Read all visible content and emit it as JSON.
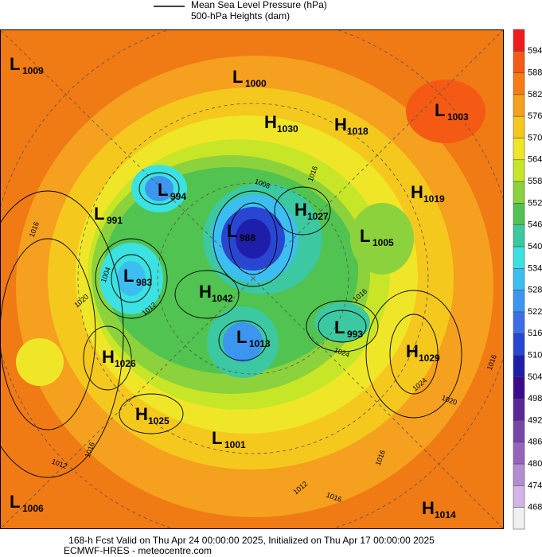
{
  "header": {
    "mslp_label": "Mean Sea Level Pressure (hPa)",
    "height_label": "500-hPa Heights (dam)"
  },
  "colorbar": {
    "ticks": [
      594,
      588,
      582,
      576,
      570,
      564,
      558,
      552,
      546,
      540,
      534,
      528,
      522,
      516,
      510,
      504,
      498,
      492,
      486,
      480,
      474,
      468
    ],
    "colors": [
      "#ee1c1c",
      "#f55a14",
      "#f57d14",
      "#f5a01e",
      "#f5c81e",
      "#f0e628",
      "#c8e628",
      "#8cd23c",
      "#50c350",
      "#3cc8a0",
      "#3ce1e1",
      "#3cbef0",
      "#3c96f0",
      "#3c6ee6",
      "#2846d2",
      "#1e1eaa",
      "#3c0a8c",
      "#5a2896",
      "#7846a8",
      "#9664bc",
      "#b48cd0",
      "#d2b4e6",
      "#f0f0f0"
    ]
  },
  "centers": [
    {
      "letter": "L",
      "value": "1009"
    },
    {
      "letter": "L",
      "value": "1000"
    },
    {
      "letter": "H",
      "value": "1030"
    },
    {
      "letter": "H",
      "value": "1018"
    },
    {
      "letter": "L",
      "value": "1003"
    },
    {
      "letter": "H",
      "value": "1019"
    },
    {
      "letter": "L",
      "value": "994"
    },
    {
      "letter": "L",
      "value": "991"
    },
    {
      "letter": "H",
      "value": "1027"
    },
    {
      "letter": "L",
      "value": "988"
    },
    {
      "letter": "L",
      "value": "1005"
    },
    {
      "letter": "L",
      "value": "983"
    },
    {
      "letter": "H",
      "value": "1042"
    },
    {
      "letter": "L",
      "value": "1013"
    },
    {
      "letter": "L",
      "value": "993"
    },
    {
      "letter": "H",
      "value": "1029"
    },
    {
      "letter": "H",
      "value": "1026"
    },
    {
      "letter": "H",
      "value": "1025"
    },
    {
      "letter": "L",
      "value": "1001"
    },
    {
      "letter": "L",
      "value": "1006"
    },
    {
      "letter": "H",
      "value": "1014"
    }
  ],
  "contour_labels": [
    "1016",
    "1020",
    "1012",
    "1016",
    "1024",
    "1020",
    "1016",
    "1012",
    "1016",
    "1016",
    "1016",
    "1008",
    "1016",
    "1012",
    "1024",
    "1004"
  ],
  "footer": {
    "line1": "168-h Fcst Valid on Thu Apr 24 00:00:00 2025, Initialized on Thu Apr 17 00:00:00 2025",
    "line2": "ECMWF-HRES  - meteocentre.com"
  }
}
